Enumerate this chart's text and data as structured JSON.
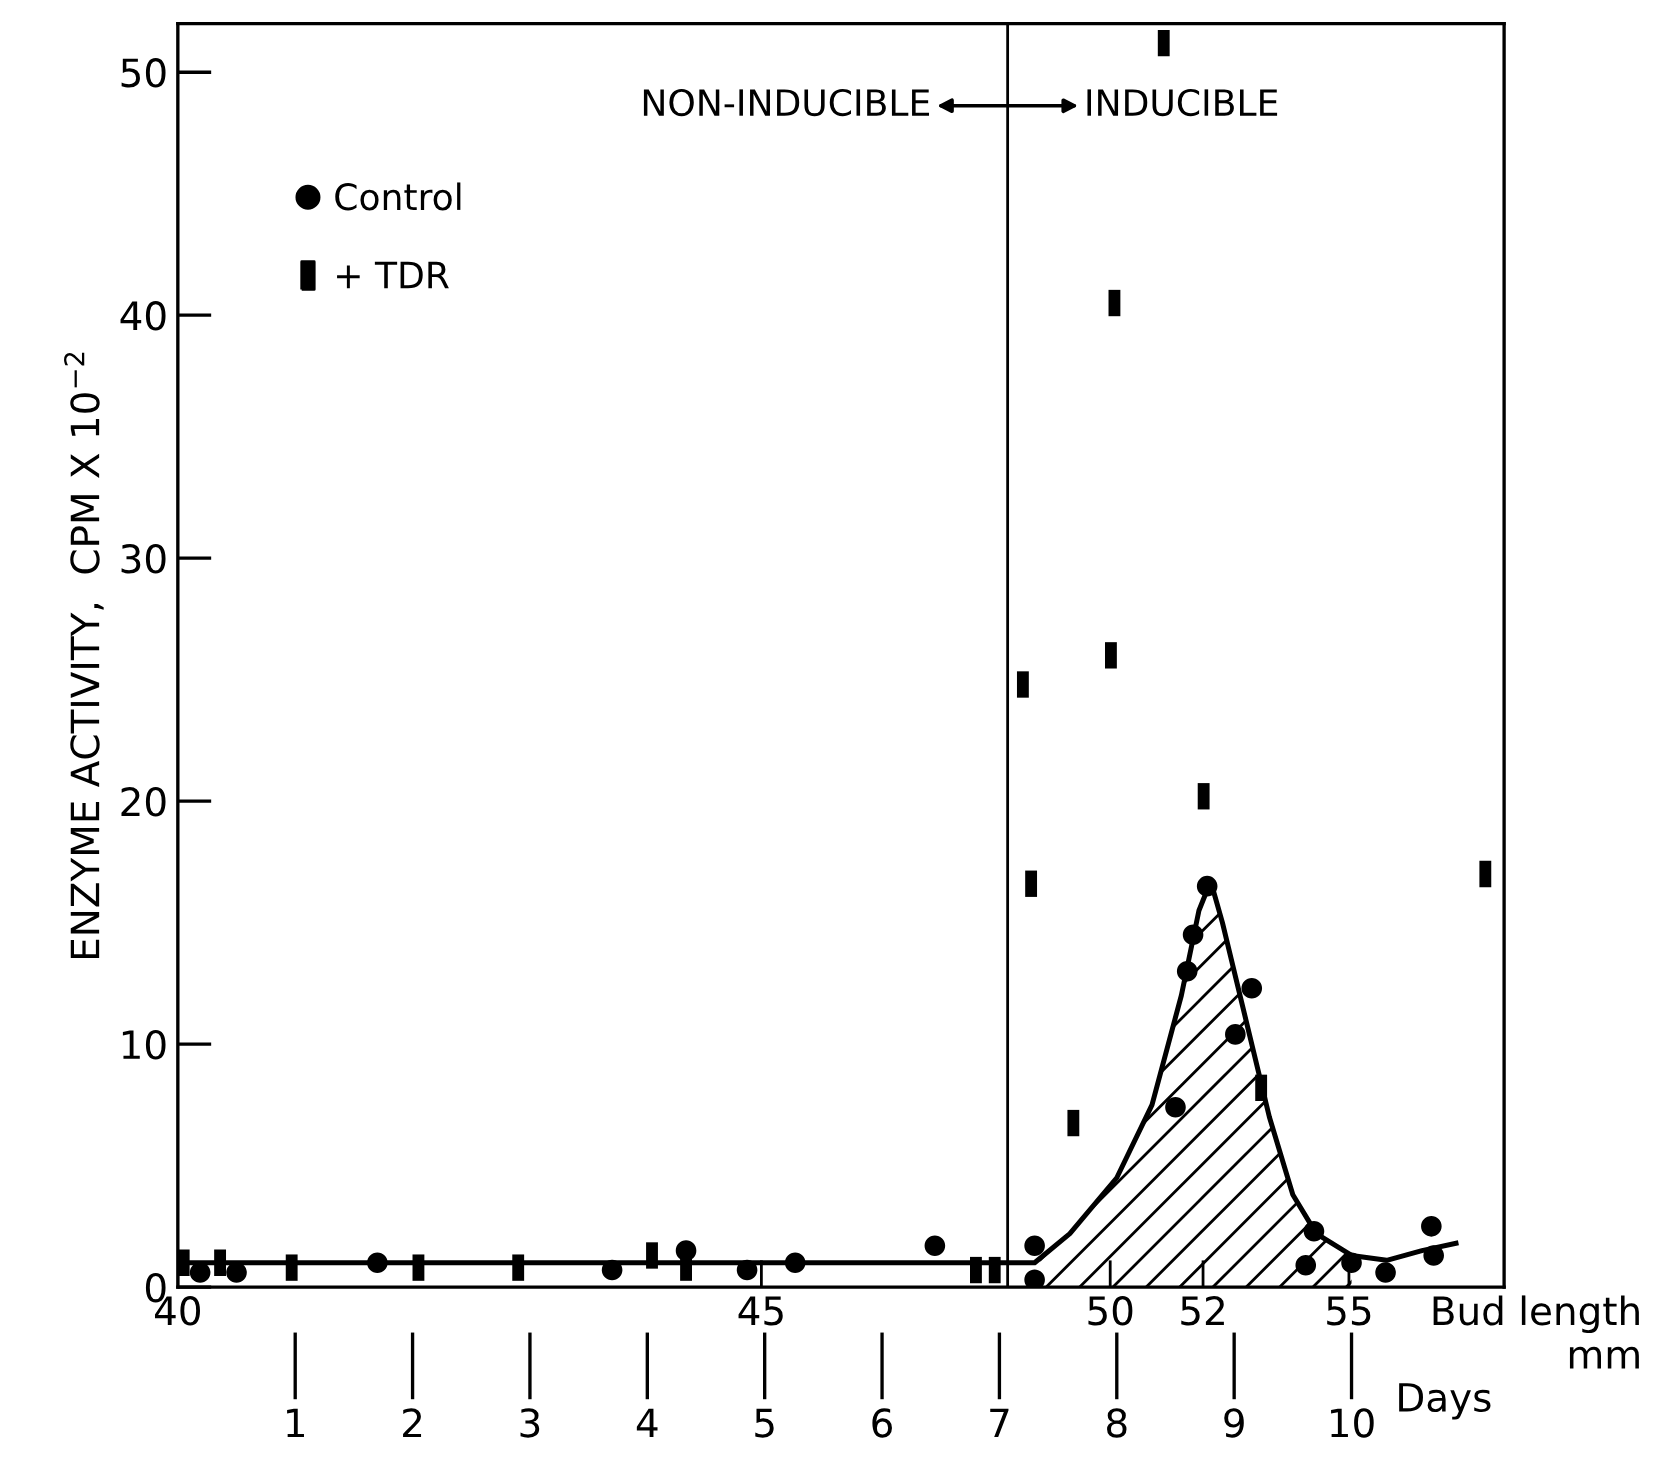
{
  "chart_data": {
    "type": "scatter",
    "xlabel": "Days",
    "ylabel": "ENZYME ACTIVITY,  CPM X 10$^{−2}$",
    "xlim": [
      0,
      11.3
    ],
    "xticks": [
      1,
      2,
      3,
      4,
      5,
      6,
      7,
      8,
      9,
      10
    ],
    "ylim": [
      0,
      52
    ],
    "yticks": [
      0,
      10,
      20,
      30,
      40,
      50
    ],
    "grid": false,
    "legend": "top left",
    "ref_lines": [
      {
        "axis": "x",
        "value": 7.07,
        "color": "#000000"
      }
    ],
    "annotations": [
      "NON-INDUCIBLE",
      "INDUCIBLE",
      "Bud length\nmm",
      "40",
      "45",
      "50",
      "52",
      "55"
    ],
    "series": [
      {
        "name": "Control",
        "marker": "circle",
        "color": "#000000",
        "x": [
          0.19,
          0.5,
          1.7,
          3.7,
          4.33,
          4.85,
          5.26,
          6.45,
          7.3,
          7.3,
          8.5,
          8.6,
          8.65,
          8.77,
          9.01,
          9.15,
          9.61,
          9.68,
          10.0,
          10.29,
          10.68,
          10.7
        ],
        "values": [
          0.6,
          0.6,
          1.0,
          0.7,
          1.5,
          0.7,
          1.0,
          1.7,
          1.7,
          0.3,
          7.4,
          13.0,
          14.5,
          16.5,
          10.4,
          12.3,
          0.9,
          2.3,
          1.0,
          0.6,
          2.5,
          1.3
        ]
      },
      {
        "name": "+ TDR",
        "marker": "square",
        "color": "#000000",
        "x": [
          0.05,
          0.36,
          0.97,
          2.05,
          2.9,
          4.04,
          4.33,
          6.8,
          6.96,
          7.2,
          7.27,
          7.63,
          7.95,
          7.98,
          8.4,
          8.74,
          9.23,
          11.14
        ],
        "values": [
          1.0,
          1.0,
          0.8,
          0.8,
          0.8,
          1.3,
          0.8,
          0.7,
          0.7,
          24.8,
          16.6,
          6.75,
          26.0,
          40.5,
          51.2,
          20.2,
          8.2,
          17.0
        ]
      },
      {
        "type": "line",
        "color": "#000000",
        "marker": "none",
        "x": [
          0,
          7.0,
          7.3,
          7.6,
          8.0,
          8.3,
          8.55,
          8.7,
          8.8,
          8.9,
          9.1,
          9.3,
          9.5,
          9.7,
          10.0,
          10.3,
          10.6,
          10.89
        ],
        "values": [
          1.0,
          1.0,
          1.0,
          2.2,
          4.5,
          7.5,
          12.0,
          15.5,
          16.7,
          15.0,
          11.0,
          7.0,
          3.8,
          2.2,
          1.3,
          1.1,
          1.5,
          1.8
        ]
      },
      {
        "type": "area",
        "color": "#000000",
        "x": [
          7.35,
          7.6,
          8.0,
          8.3,
          8.55,
          8.7,
          8.8,
          8.9,
          9.1,
          9.3,
          9.5,
          9.7,
          10.0
        ],
        "values": [
          1.1,
          2.2,
          4.5,
          7.5,
          12.0,
          15.5,
          16.7,
          15.0,
          11.0,
          7.0,
          3.8,
          2.2,
          1.3
        ]
      }
    ]
  }
}
